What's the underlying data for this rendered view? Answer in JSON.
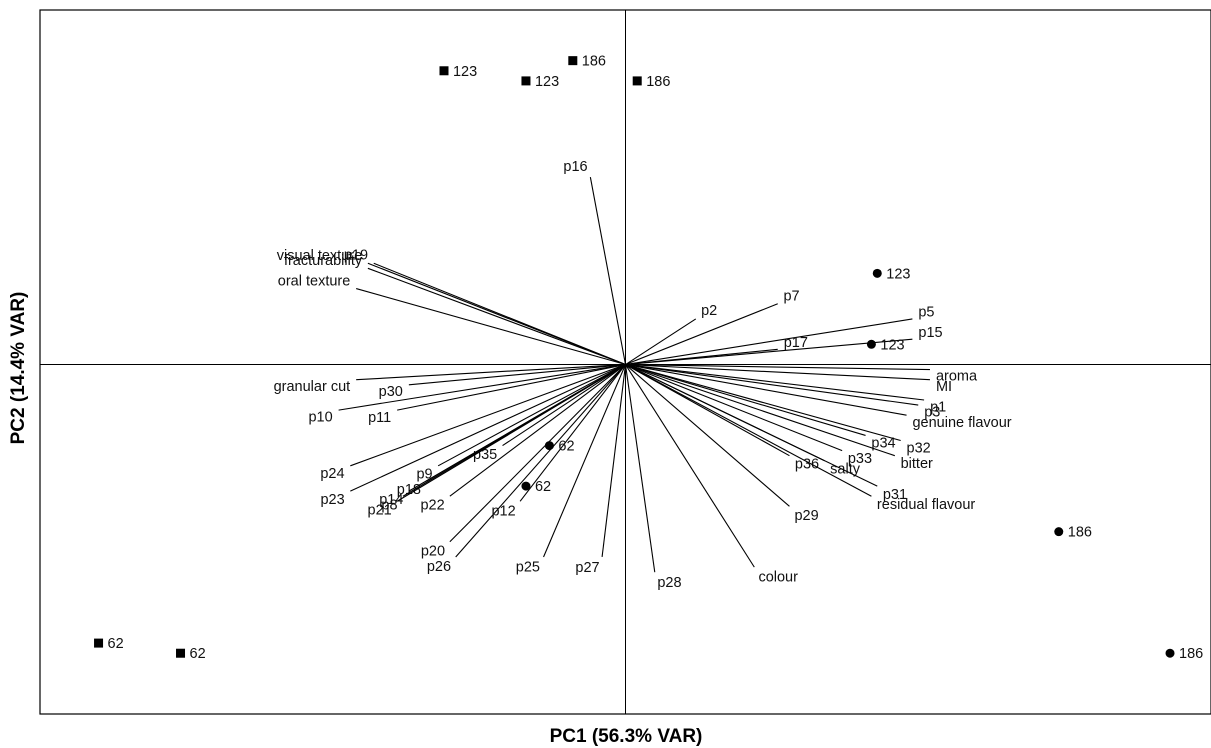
{
  "chart_data": {
    "type": "scatter",
    "xlabel": "PC1 (56.3% VAR)",
    "ylabel": "PC2 (14.4% VAR)",
    "xlim": [
      -1.0,
      1.0
    ],
    "ylim": [
      -0.69,
      0.7
    ],
    "grid": false,
    "origin_lines": true,
    "loadings": [
      {
        "label": "p16",
        "x": -0.06,
        "y": 0.37
      },
      {
        "label": "visual texture",
        "x": -0.44,
        "y": 0.2
      },
      {
        "label": "p19",
        "x": -0.43,
        "y": 0.2
      },
      {
        "label": "oral texture",
        "x": -0.46,
        "y": 0.15
      },
      {
        "label": "fracturability",
        "x": -0.44,
        "y": 0.19
      },
      {
        "label": "p2",
        "x": 0.12,
        "y": 0.09
      },
      {
        "label": "p7",
        "x": 0.26,
        "y": 0.12
      },
      {
        "label": "p5",
        "x": 0.49,
        "y": 0.09
      },
      {
        "label": "p15",
        "x": 0.49,
        "y": 0.05
      },
      {
        "label": "p17",
        "x": 0.26,
        "y": 0.03
      },
      {
        "label": "aroma",
        "x": 0.52,
        "y": -0.01
      },
      {
        "label": "MI",
        "x": 0.52,
        "y": -0.03
      },
      {
        "label": "p1",
        "x": 0.51,
        "y": -0.07
      },
      {
        "label": "p3",
        "x": 0.5,
        "y": -0.08
      },
      {
        "label": "genuine flavour",
        "x": 0.48,
        "y": -0.1
      },
      {
        "label": "p34",
        "x": 0.41,
        "y": -0.14
      },
      {
        "label": "p32",
        "x": 0.47,
        "y": -0.15
      },
      {
        "label": "p33",
        "x": 0.37,
        "y": -0.17
      },
      {
        "label": "bitter",
        "x": 0.46,
        "y": -0.18
      },
      {
        "label": "salty",
        "x": 0.34,
        "y": -0.19
      },
      {
        "label": "p36",
        "x": 0.28,
        "y": -0.18
      },
      {
        "label": "p31",
        "x": 0.43,
        "y": -0.24
      },
      {
        "label": "residual flavour",
        "x": 0.42,
        "y": -0.26
      },
      {
        "label": "p29",
        "x": 0.28,
        "y": -0.28
      },
      {
        "label": "colour",
        "x": 0.22,
        "y": -0.4
      },
      {
        "label": "p28",
        "x": 0.05,
        "y": -0.41
      },
      {
        "label": "p27",
        "x": -0.04,
        "y": -0.38
      },
      {
        "label": "p25",
        "x": -0.14,
        "y": -0.38
      },
      {
        "label": "p26",
        "x": -0.29,
        "y": -0.38
      },
      {
        "label": "p20",
        "x": -0.3,
        "y": -0.35
      },
      {
        "label": "p12",
        "x": -0.18,
        "y": -0.27
      },
      {
        "label": "p22",
        "x": -0.3,
        "y": -0.26
      },
      {
        "label": "p35",
        "x": -0.21,
        "y": -0.16
      },
      {
        "label": "p9",
        "x": -0.32,
        "y": -0.2
      },
      {
        "label": "p18",
        "x": -0.34,
        "y": -0.23
      },
      {
        "label": "p14",
        "x": -0.37,
        "y": -0.25
      },
      {
        "label": "p8",
        "x": -0.38,
        "y": -0.26
      },
      {
        "label": "p21",
        "x": -0.39,
        "y": -0.27
      },
      {
        "label": "p24",
        "x": -0.47,
        "y": -0.2
      },
      {
        "label": "p23",
        "x": -0.47,
        "y": -0.25
      },
      {
        "label": "p10",
        "x": -0.49,
        "y": -0.09
      },
      {
        "label": "p11",
        "x": -0.39,
        "y": -0.09
      },
      {
        "label": "p30",
        "x": -0.37,
        "y": -0.04
      },
      {
        "label": "granular cut",
        "x": -0.46,
        "y": -0.03
      }
    ],
    "series": [
      {
        "marker": "square",
        "points": [
          {
            "label": "123",
            "x": -0.31,
            "y": 0.58
          },
          {
            "label": "123",
            "x": -0.17,
            "y": 0.56
          },
          {
            "label": "186",
            "x": -0.09,
            "y": 0.6
          },
          {
            "label": "186",
            "x": 0.02,
            "y": 0.56
          },
          {
            "label": "62",
            "x": -0.9,
            "y": -0.55
          },
          {
            "label": "62",
            "x": -0.76,
            "y": -0.57
          }
        ]
      },
      {
        "marker": "circle",
        "points": [
          {
            "label": "123",
            "x": 0.43,
            "y": 0.18
          },
          {
            "label": "123",
            "x": 0.42,
            "y": 0.04
          },
          {
            "label": "186",
            "x": 0.74,
            "y": -0.33
          },
          {
            "label": "186",
            "x": 0.93,
            "y": -0.57
          },
          {
            "label": "62",
            "x": -0.13,
            "y": -0.16
          },
          {
            "label": "62",
            "x": -0.17,
            "y": -0.24
          }
        ]
      }
    ]
  }
}
